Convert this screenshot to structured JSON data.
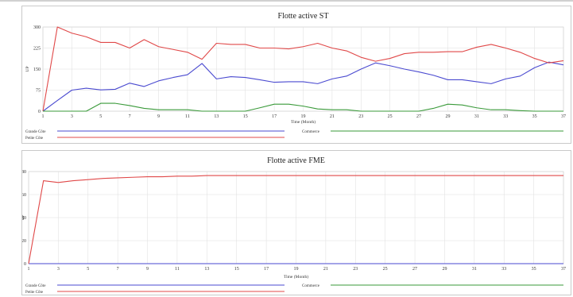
{
  "chart_data": [
    {
      "type": "line",
      "title": "Flotte active  ST",
      "xlabel": "Time (Month)",
      "ylabel": "UP",
      "xlim": [
        1,
        37
      ],
      "ylim": [
        0,
        300
      ],
      "x_ticks": [
        1,
        3,
        5,
        7,
        9,
        11,
        13,
        15,
        17,
        19,
        21,
        23,
        25,
        27,
        29,
        31,
        33,
        35,
        37
      ],
      "y_ticks": [
        0,
        75,
        150,
        225,
        300
      ],
      "y_tick_labels": [
        "0",
        "75",
        "150",
        "225",
        "300"
      ],
      "grid": true,
      "legend_position": "bottom",
      "series": [
        {
          "name": "Grande Côte",
          "color": "#4a4ad0",
          "x": [
            1,
            2,
            3,
            4,
            5,
            6,
            7,
            8,
            9,
            10,
            11,
            12,
            13,
            14,
            15,
            16,
            17,
            18,
            19,
            20,
            21,
            22,
            23,
            24,
            25,
            26,
            27,
            28,
            29,
            30,
            31,
            32,
            33,
            34,
            35,
            36,
            37
          ],
          "values": [
            0,
            38,
            75,
            82,
            76,
            78,
            100,
            88,
            108,
            120,
            130,
            170,
            115,
            123,
            120,
            112,
            103,
            105,
            105,
            98,
            115,
            125,
            150,
            172,
            162,
            150,
            140,
            128,
            112,
            112,
            105,
            98,
            115,
            125,
            155,
            175,
            165
          ]
        },
        {
          "name": "Petite Côte",
          "color": "#e04848",
          "x": [
            1,
            2,
            3,
            4,
            5,
            6,
            7,
            8,
            9,
            10,
            11,
            12,
            13,
            14,
            15,
            16,
            17,
            18,
            19,
            20,
            21,
            22,
            23,
            24,
            25,
            26,
            27,
            28,
            29,
            30,
            31,
            32,
            33,
            34,
            35,
            36,
            37
          ],
          "values": [
            0,
            300,
            278,
            265,
            245,
            245,
            225,
            255,
            230,
            220,
            210,
            185,
            242,
            238,
            238,
            225,
            225,
            222,
            230,
            242,
            225,
            215,
            192,
            178,
            188,
            205,
            210,
            210,
            212,
            212,
            228,
            238,
            225,
            210,
            188,
            172,
            180
          ]
        },
        {
          "name": "Commerce",
          "color": "#3a9a3a",
          "x": [
            1,
            2,
            3,
            4,
            5,
            6,
            7,
            8,
            9,
            10,
            11,
            12,
            13,
            14,
            15,
            16,
            17,
            18,
            19,
            20,
            21,
            22,
            23,
            24,
            25,
            26,
            27,
            28,
            29,
            30,
            31,
            32,
            33,
            34,
            35,
            36,
            37
          ],
          "values": [
            0,
            0,
            0,
            0,
            28,
            28,
            20,
            10,
            5,
            5,
            5,
            0,
            0,
            0,
            0,
            12,
            25,
            25,
            18,
            8,
            5,
            5,
            0,
            0,
            0,
            0,
            0,
            10,
            25,
            22,
            12,
            5,
            5,
            2,
            0,
            0,
            0
          ]
        }
      ]
    },
    {
      "type": "line",
      "title": "Flotte active  FME",
      "xlabel": "Time (Month)",
      "ylabel": "UP",
      "xlim": [
        1,
        37
      ],
      "ylim": [
        0,
        80
      ],
      "x_ticks": [
        1,
        3,
        5,
        7,
        9,
        11,
        13,
        15,
        17,
        19,
        21,
        23,
        25,
        27,
        29,
        31,
        33,
        35,
        37
      ],
      "y_ticks": [
        0,
        20,
        40,
        60,
        80
      ],
      "y_tick_labels": [
        "0",
        "20",
        "40",
        "60",
        "80"
      ],
      "grid": true,
      "legend_position": "bottom",
      "series": [
        {
          "name": "Grande Côte",
          "color": "#4a4ad0",
          "x": [
            1,
            37
          ],
          "values": [
            0,
            0
          ]
        },
        {
          "name": "Petite Côte",
          "color": "#e04848",
          "x": [
            1,
            2,
            3,
            4,
            5,
            6,
            7,
            8,
            9,
            10,
            11,
            12,
            13,
            14,
            15,
            16,
            17,
            18,
            19,
            20,
            21,
            22,
            23,
            24,
            25,
            26,
            27,
            28,
            29,
            30,
            31,
            32,
            33,
            34,
            35,
            36,
            37
          ],
          "values": [
            0,
            72,
            70.5,
            72,
            73,
            74,
            74.5,
            75,
            75.5,
            75.5,
            76,
            76,
            76.5,
            76.5,
            76.5,
            76.5,
            76.5,
            76.5,
            76.5,
            76.5,
            76.5,
            76.5,
            76.5,
            76.5,
            76.5,
            76.5,
            76.5,
            76.5,
            76.5,
            76.5,
            76.5,
            76.5,
            76.5,
            76.5,
            76.5,
            76.5,
            76.5
          ]
        },
        {
          "name": "Commerce",
          "color": "#3a9a3a",
          "x": [],
          "values": []
        }
      ]
    }
  ]
}
